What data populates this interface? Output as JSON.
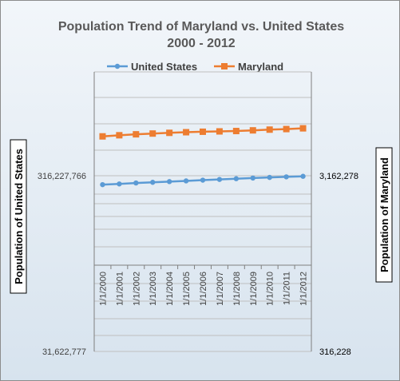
{
  "chart_data": {
    "type": "line",
    "title": "Population Trend of Maryland vs. United States",
    "subtitle": "2000 - 2012",
    "categories": [
      "1/1/2000",
      "1/1/2001",
      "1/1/2002",
      "1/1/2003",
      "1/1/2004",
      "1/1/2005",
      "1/1/2006",
      "1/1/2007",
      "1/1/2008",
      "1/1/2009",
      "1/1/2010",
      "1/1/2011",
      "1/1/2012"
    ],
    "series": [
      {
        "name": "United States",
        "axis": "left",
        "color": "#5B9BD5",
        "marker": "circle",
        "values": [
          281400000,
          284000000,
          287600000,
          290100000,
          292800000,
          295500000,
          298400000,
          301200000,
          304100000,
          306800000,
          309300000,
          311600000,
          313900000
        ]
      },
      {
        "name": "Maryland",
        "axis": "right",
        "color": "#ED7D31",
        "marker": "square",
        "values": [
          5296000,
          5374000,
          5441000,
          5496000,
          5547000,
          5592000,
          5628000,
          5653000,
          5680000,
          5730000,
          5786000,
          5828000,
          5885000
        ]
      }
    ],
    "y_left": {
      "label": "Population of United States",
      "scale": "log",
      "ticks": [
        {
          "value": 316227766,
          "label": "316,227,766"
        },
        {
          "value": 31622777,
          "label": "31,622,777"
        }
      ]
    },
    "y_right": {
      "label": "Population of Maryland",
      "scale": "log",
      "ticks": [
        {
          "value": 3162278,
          "label": "3,162,278"
        },
        {
          "value": 316228,
          "label": "316,228"
        }
      ]
    },
    "legend": "top",
    "grid": true
  }
}
